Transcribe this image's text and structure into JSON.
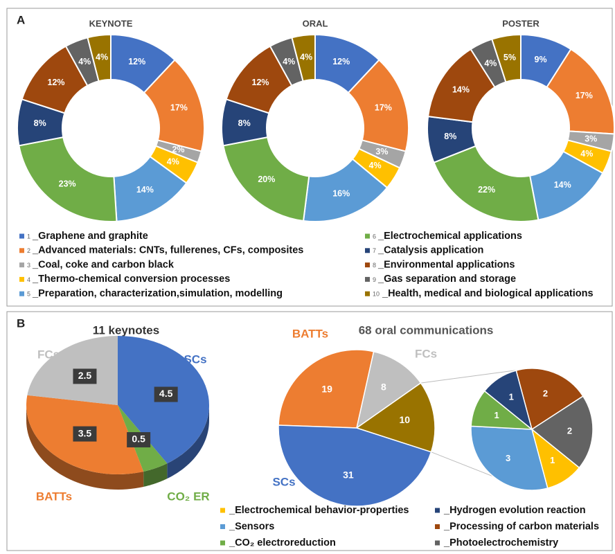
{
  "panels": [
    "A",
    "B"
  ],
  "chart_data": [
    {
      "type": "donut",
      "title": "KEYNOTE",
      "category_numbers": [
        1,
        2,
        3,
        4,
        5,
        6,
        7,
        8,
        9,
        10
      ],
      "categories": [
        "_Graphene and graphite",
        "_Advanced materials: CNTs, fullerenes, CFs, composites",
        "_Coal, coke and carbon black",
        "_Thermo-chemical conversion processes",
        "_Preparation, characterization,simulation, modelling",
        "_Electrochemical applications",
        "_Catalysis application",
        "_Environmental applications",
        "_Gas separation and storage",
        "_Health, medical and biological applications"
      ],
      "colors": [
        "#4472c4",
        "#ed7d31",
        "#a5a5a5",
        "#ffc000",
        "#5b9bd5",
        "#70ad47",
        "#264478",
        "#9e480e",
        "#636363",
        "#997300"
      ],
      "values": [
        12,
        17,
        2,
        4,
        14,
        23,
        8,
        12,
        4,
        4
      ],
      "value_labels": [
        "12%",
        "17%",
        "2%",
        "4%",
        "14%",
        "23%",
        "8%",
        "12%",
        "4%",
        "4%"
      ]
    },
    {
      "type": "donut",
      "title": "ORAL",
      "values": [
        12,
        17,
        3,
        4,
        16,
        20,
        8,
        12,
        4,
        4
      ],
      "value_labels": [
        "12%",
        "17%",
        "3%",
        "4%",
        "16%",
        "20%",
        "8%",
        "12%",
        "4%",
        "4%"
      ]
    },
    {
      "type": "donut",
      "title": "POSTER",
      "values": [
        9,
        17,
        3,
        4,
        14,
        22,
        8,
        14,
        4,
        5
      ],
      "value_labels": [
        "9%",
        "17%",
        "3%",
        "4%",
        "14%",
        "22%",
        "8%",
        "14%",
        "4%",
        "5%"
      ]
    },
    {
      "type": "pie3d",
      "title": "11 keynotes",
      "categories": [
        "SCs",
        "CO₂ ER",
        "BATTs",
        "FCs"
      ],
      "values": [
        4.5,
        0.5,
        3.5,
        2.5
      ],
      "colors": [
        "#4472c4",
        "#70ad47",
        "#ed7d31",
        "#bfbfbf"
      ]
    },
    {
      "type": "pie",
      "title": "68 oral communications",
      "categories": [
        "BATTs",
        "FCs",
        null,
        "SCs"
      ],
      "values": [
        19,
        8,
        10,
        31
      ],
      "colors": [
        "#ed7d31",
        "#bfbfbf",
        "#997300",
        "#4472c4"
      ]
    },
    {
      "type": "pie",
      "categories": [
        "_Processing of carbon materials",
        "_Photoelectrochemistry",
        "_Electrochemical behavior-properties",
        "_Sensors",
        "_CO₂ electroreduction",
        "_Hydrogen evolution reaction"
      ],
      "values": [
        2,
        2,
        1,
        3,
        1,
        1
      ],
      "colors": [
        "#9e480e",
        "#636363",
        "#ffc000",
        "#5b9bd5",
        "#70ad47",
        "#264478"
      ]
    }
  ]
}
